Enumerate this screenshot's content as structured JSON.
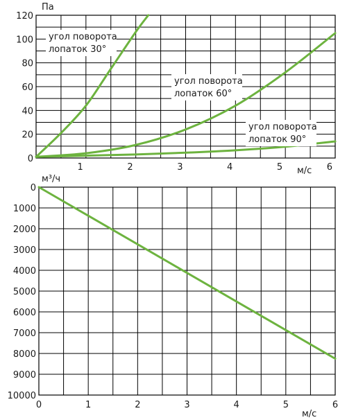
{
  "chart_data": [
    {
      "type": "line",
      "xunit": "м/с",
      "yunit": "Па",
      "xlim": [
        0,
        6
      ],
      "ylim": [
        0,
        120
      ],
      "xticks": [
        "1",
        "2",
        "3",
        "4",
        "5",
        "6"
      ],
      "yticks": [
        "0",
        "20",
        "40",
        "60",
        "80",
        "100",
        "120"
      ],
      "grid": true,
      "series": [
        {
          "name": "угол поворота лопаток 30°",
          "label_lines": [
            "угол поворота",
            "лопаток 30°"
          ],
          "color": "#6db33f",
          "x": [
            0,
            0.5,
            1,
            1.5,
            2,
            2.25
          ],
          "y": [
            1,
            21,
            44,
            75,
            106,
            120
          ]
        },
        {
          "name": "угол поворота лопаток 60°",
          "label_lines": [
            "угол поворота",
            "лопаток 60°"
          ],
          "color": "#6db33f",
          "x": [
            0,
            1,
            2,
            3,
            4,
            5,
            6
          ],
          "y": [
            1,
            4,
            11,
            24,
            44,
            72,
            105
          ]
        },
        {
          "name": "угол поворота лопаток 90°",
          "label_lines": [
            "угол поворота",
            "лопаток 90°"
          ],
          "color": "#6db33f",
          "x": [
            0,
            1,
            2,
            3,
            4,
            5,
            6
          ],
          "y": [
            1,
            2,
            3,
            4.5,
            6.5,
            9.5,
            14
          ]
        }
      ]
    },
    {
      "type": "line",
      "xunit": "м/с",
      "yunit": "м³/ч",
      "xlim": [
        0,
        6
      ],
      "ylim": [
        0,
        10000
      ],
      "y_inverted": true,
      "xticks": [
        "0",
        "1",
        "2",
        "3",
        "4",
        "5",
        "6"
      ],
      "yticks": [
        "0",
        "1000",
        "2000",
        "3000",
        "4000",
        "5000",
        "6000",
        "7000",
        "8000",
        "9000",
        "10000"
      ],
      "grid": true,
      "series": [
        {
          "color": "#6db33f",
          "x": [
            0,
            6
          ],
          "y": [
            0,
            8250
          ]
        }
      ]
    }
  ]
}
